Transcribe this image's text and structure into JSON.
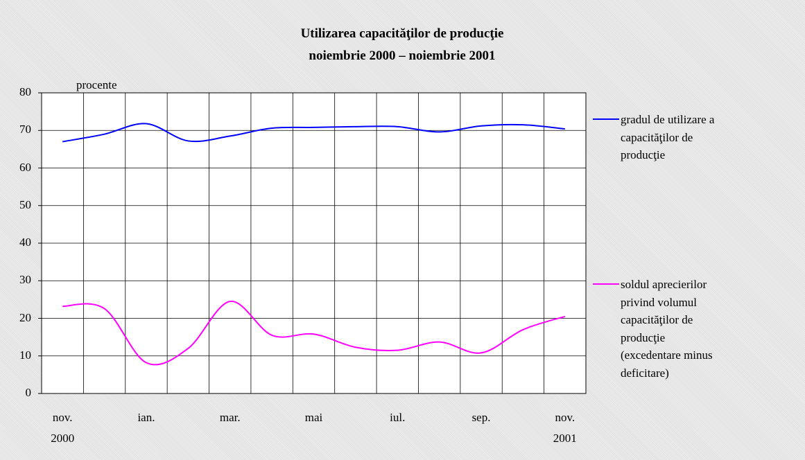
{
  "chart_data": {
    "type": "line",
    "title": "Utilizarea capacităţilor de producţie",
    "subtitle": "noiembrie 2000 – noiembrie 2001",
    "annotation": "procente",
    "categories": [
      "nov. 2000",
      null,
      "ian.",
      null,
      "mar.",
      null,
      "mai",
      null,
      "iul.",
      null,
      "sep.",
      null,
      "nov. 2001"
    ],
    "series": [
      {
        "name": "gradul de utilizare a capacităţilor de producţie",
        "color": "#0000ff",
        "values": [
          67,
          69,
          71.8,
          67.2,
          68.5,
          70.6,
          70.8,
          71,
          71,
          69.6,
          71.2,
          71.5,
          70.4
        ]
      },
      {
        "name": "soldul aprecierilor privind volumul capacităţilor de producţie (excedentare minus deficitare)",
        "color": "#ff00ff",
        "values": [
          23.2,
          22.6,
          8.2,
          12,
          24.5,
          15.5,
          15.8,
          12.3,
          11.5,
          13.7,
          10.8,
          17,
          20.5
        ]
      }
    ],
    "ylim": [
      0,
      80
    ],
    "yticks": [
      0,
      10,
      20,
      30,
      40,
      50,
      60,
      70,
      80
    ],
    "grid": true,
    "smooth": true,
    "legend": "right"
  }
}
